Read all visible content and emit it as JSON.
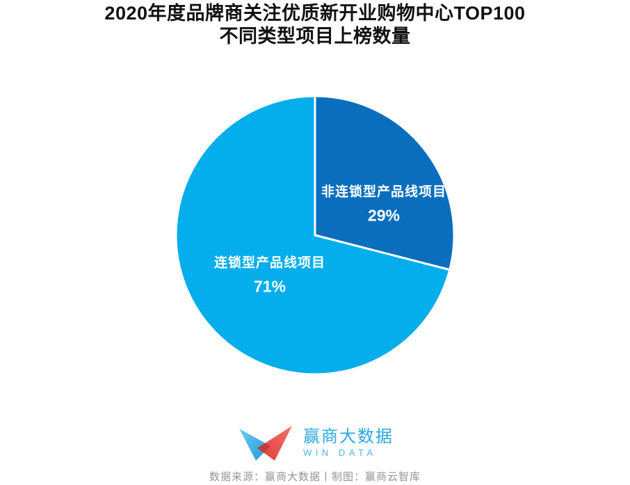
{
  "title": {
    "line1": "2020年度品牌商关注优质新开业购物中心TOP100",
    "line2": "不同类型项目上榜数量"
  },
  "chart_data": {
    "type": "pie",
    "title": "2020年度品牌商关注优质新开业购物中心TOP100 不同类型项目上榜数量",
    "unit": "%",
    "start_angle_deg": 0,
    "direction": "clockwise",
    "label_position": "inside",
    "label_color": "#FFFFFF",
    "divider_color": "#FFFFFF",
    "slices": [
      {
        "label": "非连锁型产品线项目",
        "value": 29,
        "display": "29%",
        "color": "#0A6EBD"
      },
      {
        "label": "连锁型产品线项目",
        "value": 71,
        "display": "71%",
        "color": "#04AEEC"
      }
    ]
  },
  "logo": {
    "brand_cn": "赢商大数据",
    "brand_en": "WIN DATA",
    "text_color": "#29A9E1",
    "mark_colors": {
      "blue_wing": "#4FC1F0",
      "red_wing": "#EA4540",
      "overlap": "#C13B3B"
    }
  },
  "footer": {
    "note": "数据来源：赢商大数据丨制图：赢商云智库"
  }
}
